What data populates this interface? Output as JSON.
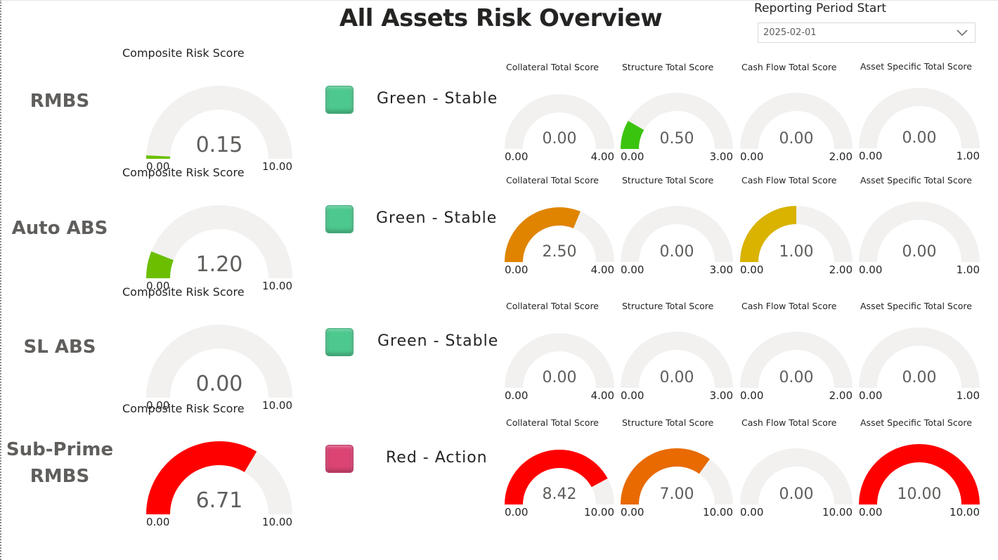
{
  "report": {
    "title": "All Assets Risk Overview"
  },
  "filter": {
    "label": "Reporting Period Start",
    "value": "2025-02-01",
    "icon": "chevron-down-icon"
  },
  "colors": {
    "track": "#f2f1f0",
    "green": "#4dc98f",
    "red": "#dc4474"
  },
  "rows": [
    {
      "name": "RMBS",
      "status": {
        "label": "Green - Stable",
        "color": "#4dc98f"
      },
      "composite": {
        "title": "Composite Risk Score",
        "value": "0.15",
        "min": "0.00",
        "max": "10.00",
        "fraction": 0.015,
        "color": "#6bbf00"
      },
      "subs": [
        {
          "title": "Collateral Total Score",
          "value": "0.00",
          "min": "0.00",
          "max": "4.00",
          "fraction": 0,
          "color": "#6bbf00"
        },
        {
          "title": "Structure Total Score",
          "value": "0.50",
          "min": "0.00",
          "max": "3.00",
          "fraction": 0.1667,
          "color": "#3bc40e"
        },
        {
          "title": "Cash Flow Total Score",
          "value": "0.00",
          "min": "0.00",
          "max": "2.00",
          "fraction": 0,
          "color": "#6bbf00"
        },
        {
          "title": "Asset Specific Total Score",
          "value": "0.00",
          "min": "0.00",
          "max": "1.00",
          "fraction": 0,
          "color": "#6bbf00"
        }
      ]
    },
    {
      "name": "Auto ABS",
      "status": {
        "label": "Green - Stable",
        "color": "#4dc98f"
      },
      "composite": {
        "title": "Composite Risk Score",
        "value": "1.20",
        "min": "0.00",
        "max": "10.00",
        "fraction": 0.12,
        "color": "#6bbf00"
      },
      "subs": [
        {
          "title": "Collateral Total Score",
          "value": "2.50",
          "min": "0.00",
          "max": "4.00",
          "fraction": 0.625,
          "color": "#e08400"
        },
        {
          "title": "Structure Total Score",
          "value": "0.00",
          "min": "0.00",
          "max": "3.00",
          "fraction": 0,
          "color": "#6bbf00"
        },
        {
          "title": "Cash Flow Total Score",
          "value": "1.00",
          "min": "0.00",
          "max": "2.00",
          "fraction": 0.5,
          "color": "#d9b300"
        },
        {
          "title": "Asset Specific Total Score",
          "value": "0.00",
          "min": "0.00",
          "max": "1.00",
          "fraction": 0,
          "color": "#6bbf00"
        }
      ]
    },
    {
      "name": "SL ABS",
      "status": {
        "label": "Green - Stable",
        "color": "#4dc98f"
      },
      "composite": {
        "title": "Composite Risk Score",
        "value": "0.00",
        "min": "0.00",
        "max": "10.00",
        "fraction": 0,
        "color": "#6bbf00"
      },
      "subs": [
        {
          "title": "Collateral Total Score",
          "value": "0.00",
          "min": "0.00",
          "max": "4.00",
          "fraction": 0,
          "color": "#6bbf00"
        },
        {
          "title": "Structure Total Score",
          "value": "0.00",
          "min": "0.00",
          "max": "3.00",
          "fraction": 0,
          "color": "#6bbf00"
        },
        {
          "title": "Cash Flow Total Score",
          "value": "0.00",
          "min": "0.00",
          "max": "2.00",
          "fraction": 0,
          "color": "#6bbf00"
        },
        {
          "title": "Asset Specific Total Score",
          "value": "0.00",
          "min": "0.00",
          "max": "1.00",
          "fraction": 0,
          "color": "#6bbf00"
        }
      ]
    },
    {
      "name": "Sub-Prime RMBS",
      "status": {
        "label": "Red - Action",
        "color": "#dc4474"
      },
      "composite": {
        "title": "Composite Risk Score",
        "value": "6.71",
        "min": "0.00",
        "max": "10.00",
        "fraction": 0.671,
        "color": "#ff0000"
      },
      "subs": [
        {
          "title": "Collateral Total Score",
          "value": "8.42",
          "min": "0.00",
          "max": "10.00",
          "fraction": 0.842,
          "color": "#ff0000"
        },
        {
          "title": "Structure Total Score",
          "value": "7.00",
          "min": "0.00",
          "max": "10.00",
          "fraction": 0.7,
          "color": "#e86a00"
        },
        {
          "title": "Cash Flow Total Score",
          "value": "0.00",
          "min": "0.00",
          "max": "10.00",
          "fraction": 0,
          "color": "#6bbf00"
        },
        {
          "title": "Asset Specific Total Score",
          "value": "10.00",
          "min": "0.00",
          "max": "10.00",
          "fraction": 1,
          "color": "#ff0000"
        }
      ]
    }
  ]
}
